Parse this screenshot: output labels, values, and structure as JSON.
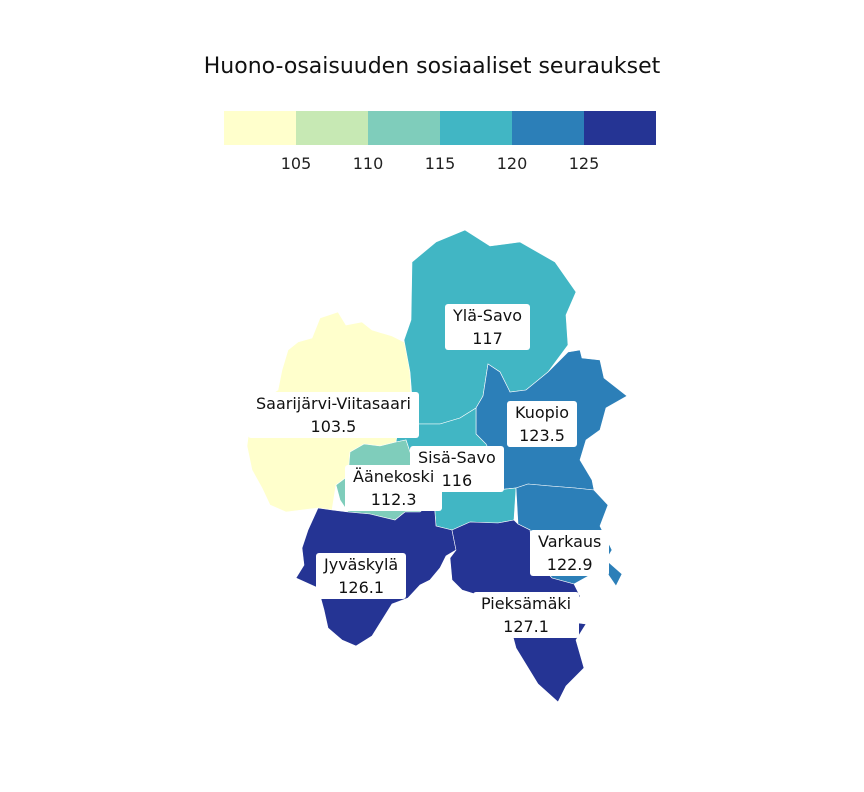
{
  "title": "Huono-osaisuuden sosiaaliset seuraukset",
  "legend": {
    "colors": [
      "#ffffcc",
      "#c7e9b4",
      "#7fcdbb",
      "#41b6c4",
      "#2c7fb8",
      "#253494"
    ],
    "ticks": [
      "105",
      "110",
      "115",
      "120",
      "125"
    ]
  },
  "regions": [
    {
      "name": "Ylä-Savo",
      "value": "117"
    },
    {
      "name": "Saarijärvi-Viitasaari",
      "value": "103.5"
    },
    {
      "name": "Kuopio",
      "value": "123.5"
    },
    {
      "name": "Sisä-Savo",
      "value": "116"
    },
    {
      "name": "Äänekoski",
      "value": "112.3"
    },
    {
      "name": "Varkaus",
      "value": "122.9"
    },
    {
      "name": "Jyväskylä",
      "value": "126.1"
    },
    {
      "name": "Pieksämäki",
      "value": "127.1"
    }
  ]
}
